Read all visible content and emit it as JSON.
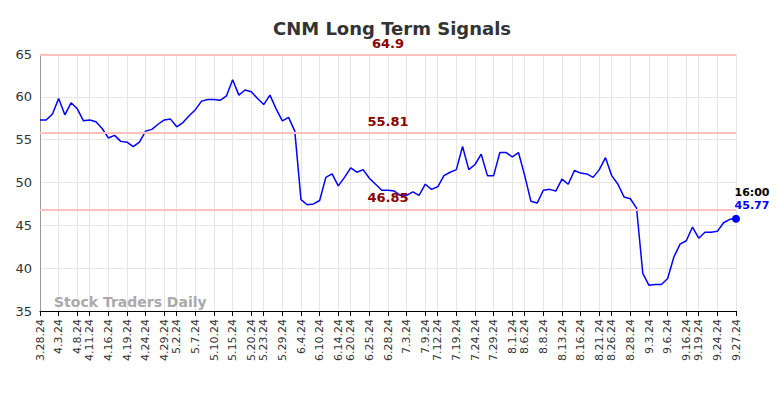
{
  "chart_data": {
    "type": "line",
    "title": "CNM Long Term Signals",
    "categories": [
      "3.28.24",
      null,
      null,
      "4.3.24",
      null,
      null,
      "4.8.24",
      null,
      "4.11.24",
      null,
      null,
      "4.16.24",
      null,
      null,
      "4.19.24",
      null,
      null,
      "4.24.24",
      null,
      null,
      "4.29.24",
      null,
      "5.2.24",
      null,
      null,
      "5.7.24",
      null,
      null,
      "5.10.24",
      null,
      null,
      "5.15.24",
      null,
      null,
      "5.20.24",
      null,
      "5.23.24",
      null,
      null,
      "5.29.24",
      null,
      null,
      "6.4.24",
      null,
      null,
      "6.10.24",
      null,
      null,
      "6.14.24",
      null,
      "6.20.24",
      null,
      null,
      "6.25.24",
      null,
      null,
      "6.28.24",
      null,
      null,
      "7.3.24",
      null,
      null,
      "7.9.24",
      null,
      "7.12.24",
      null,
      null,
      "7.19.24",
      null,
      null,
      "7.24.24",
      null,
      null,
      "7.29.24",
      null,
      null,
      "8.1.24",
      null,
      "8.6.24",
      null,
      null,
      "8.8.24",
      null,
      null,
      "8.13.24",
      null,
      null,
      "8.16.24",
      null,
      null,
      "8.21.24",
      null,
      "8.26.24",
      null,
      null,
      "8.28.24",
      null,
      null,
      "9.3.24",
      null,
      null,
      "9.6.24",
      null,
      null,
      "9.16.24",
      null,
      "9.19.24",
      null,
      null,
      "9.24.24",
      null,
      null,
      "9.27.24"
    ],
    "values": [
      57.3,
      57.3,
      58.0,
      59.8,
      57.9,
      59.3,
      58.6,
      57.2,
      57.3,
      57.1,
      56.3,
      55.2,
      55.5,
      54.8,
      54.7,
      54.2,
      54.7,
      56.0,
      56.2,
      56.8,
      57.3,
      57.4,
      56.5,
      57.0,
      57.8,
      58.5,
      59.5,
      59.7,
      59.7,
      59.6,
      60.1,
      62.0,
      60.2,
      60.8,
      60.6,
      59.8,
      59.1,
      60.2,
      58.6,
      57.2,
      57.6,
      56.0,
      48.0,
      47.4,
      47.5,
      47.9,
      50.6,
      51.0,
      49.6,
      50.6,
      51.7,
      51.2,
      51.5,
      50.5,
      49.8,
      49.1,
      49.1,
      49.0,
      48.5,
      48.5,
      48.9,
      48.5,
      49.8,
      49.2,
      49.5,
      50.8,
      51.2,
      51.5,
      54.2,
      51.5,
      52.1,
      53.3,
      50.8,
      50.8,
      53.5,
      53.5,
      53.0,
      53.5,
      50.8,
      47.8,
      47.6,
      49.1,
      49.2,
      49.0,
      50.4,
      49.8,
      51.4,
      51.1,
      51.0,
      50.6,
      51.5,
      52.9,
      50.8,
      49.8,
      48.3,
      48.1,
      47.0,
      39.4,
      38.0,
      38.1,
      38.1,
      38.8,
      41.3,
      42.8,
      43.2,
      44.8,
      43.5,
      44.2,
      44.2,
      44.3,
      45.3,
      45.7,
      45.77
    ],
    "color": "#0000ff",
    "signal_levels": [
      64.9,
      55.81,
      46.85
    ],
    "last_point_label": "16:00",
    "watermark": "Stock Traders Daily",
    "ylim": [
      35,
      65
    ],
    "yticks": [
      35,
      40,
      45,
      50,
      55,
      60,
      65
    ],
    "grid": true
  }
}
